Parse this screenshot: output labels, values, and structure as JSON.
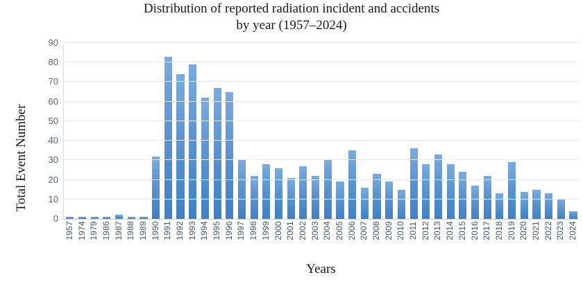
{
  "title": {
    "line1": "Distribution of reported radiation incident and accidents",
    "line2": "by year (1957–2024)"
  },
  "chart_data": {
    "type": "bar",
    "title": "Distribution of reported radiation incident and accidents by year (1957–2024)",
    "xlabel": "Years",
    "ylabel": "Total Event Number",
    "categories": [
      "1957",
      "1974",
      "1979",
      "1986",
      "1987",
      "1988",
      "1989",
      "1990",
      "1991",
      "1992",
      "1993",
      "1994",
      "1995",
      "1996",
      "1997",
      "1998",
      "1999",
      "2000",
      "2001",
      "2002",
      "2003",
      "2004",
      "2005",
      "2006",
      "2007",
      "2008",
      "2009",
      "2010",
      "2011",
      "2012",
      "2013",
      "2014",
      "2015",
      "2016",
      "2017",
      "2018",
      "2019",
      "2020",
      "2021",
      "2022",
      "2023",
      "2024"
    ],
    "values": [
      1,
      1,
      1,
      1,
      2,
      1,
      1,
      32,
      83,
      74,
      79,
      62,
      67,
      65,
      30,
      22,
      28,
      26,
      21,
      27,
      22,
      30,
      19,
      35,
      16,
      23,
      19,
      15,
      36,
      28,
      33,
      28,
      24,
      17,
      22,
      13,
      29,
      14,
      15,
      13,
      10,
      4
    ],
    "ylim": [
      0,
      90
    ],
    "yticks": [
      0,
      10,
      20,
      30,
      40,
      50,
      60,
      70,
      80,
      90
    ],
    "grid": true,
    "legend": "none",
    "colors": {
      "bar_top": "#7babdd",
      "bar_bottom": "#4080c2",
      "gridline": "#e7eaef",
      "axis_line": "#c8ced6",
      "y_tick_text": "#5a6474",
      "x_tick_text": "#44546a",
      "title_text": "#181818"
    }
  }
}
